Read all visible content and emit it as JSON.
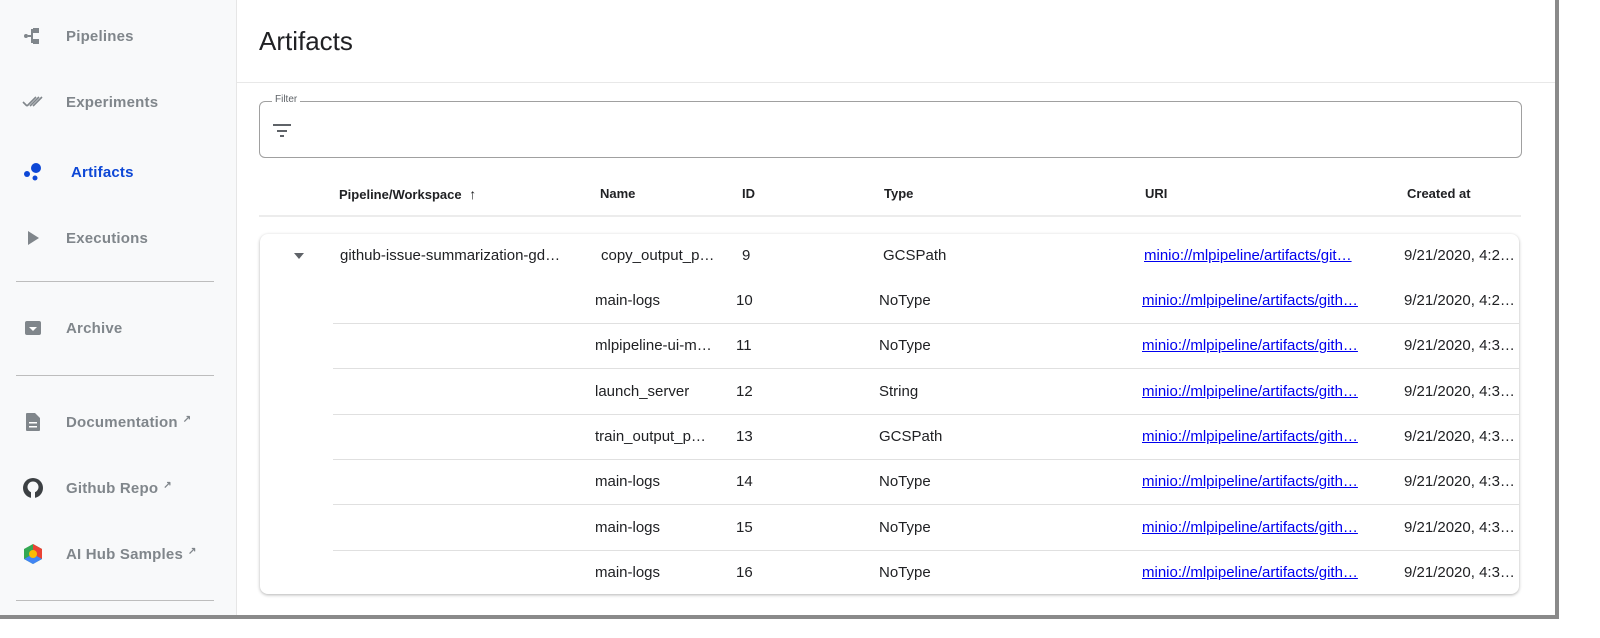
{
  "sidebar": {
    "items": [
      {
        "label": "Pipelines",
        "icon": "pipelines-icon"
      },
      {
        "label": "Experiments",
        "icon": "experiments-icon"
      },
      {
        "label": "Artifacts",
        "icon": "artifacts-icon",
        "active": true
      },
      {
        "label": "Executions",
        "icon": "play-icon"
      },
      {
        "label": "Archive",
        "icon": "archive-icon"
      },
      {
        "label": "Documentation",
        "icon": "document-icon",
        "external": true
      },
      {
        "label": "Github Repo",
        "icon": "github-icon",
        "external": true
      },
      {
        "label": "AI Hub Samples",
        "icon": "ai-hub-icon",
        "external": true
      }
    ],
    "accent_color": "#0d47d6"
  },
  "page": {
    "title": "Artifacts"
  },
  "filter": {
    "label": "Filter",
    "value": ""
  },
  "table": {
    "columns": [
      "Pipeline/Workspace",
      "Name",
      "ID",
      "Type",
      "URI",
      "Created at"
    ],
    "sort": {
      "column": "Pipeline/Workspace",
      "direction": "ascending"
    },
    "group": {
      "pipeline": "github-issue-summarization-gd…",
      "expanded": true,
      "rows": [
        {
          "name": "copy_output_p…",
          "id": "9",
          "type": "GCSPath",
          "uri": "minio://mlpipeline/artifacts/git…",
          "created": "9/21/2020, 4:2…"
        },
        {
          "name": "main-logs",
          "id": "10",
          "type": "NoType",
          "uri": "minio://mlpipeline/artifacts/gith…",
          "created": "9/21/2020, 4:2…"
        },
        {
          "name": "mlpipeline-ui-m…",
          "id": "11",
          "type": "NoType",
          "uri": "minio://mlpipeline/artifacts/gith…",
          "created": "9/21/2020, 4:3…"
        },
        {
          "name": "launch_server",
          "id": "12",
          "type": "String",
          "uri": "minio://mlpipeline/artifacts/gith…",
          "created": "9/21/2020, 4:3…"
        },
        {
          "name": "train_output_p…",
          "id": "13",
          "type": "GCSPath",
          "uri": "minio://mlpipeline/artifacts/gith…",
          "created": "9/21/2020, 4:3…"
        },
        {
          "name": "main-logs",
          "id": "14",
          "type": "NoType",
          "uri": "minio://mlpipeline/artifacts/gith…",
          "created": "9/21/2020, 4:3…"
        },
        {
          "name": "main-logs",
          "id": "15",
          "type": "NoType",
          "uri": "minio://mlpipeline/artifacts/gith…",
          "created": "9/21/2020, 4:3…"
        },
        {
          "name": "main-logs",
          "id": "16",
          "type": "NoType",
          "uri": "minio://mlpipeline/artifacts/gith…",
          "created": "9/21/2020, 4:3…"
        }
      ]
    }
  }
}
